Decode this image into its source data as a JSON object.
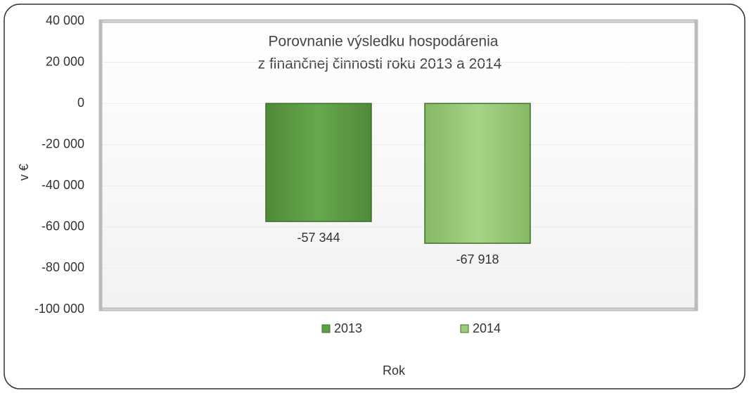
{
  "chart_data": {
    "type": "bar",
    "title": [
      "Porovnanie výsledku hospodárenia",
      "z finančnej činnosti roku 2013  a 2014"
    ],
    "xlabel": "Rok",
    "ylabel": "v €",
    "categories": [
      null
    ],
    "series": [
      {
        "name": "2013",
        "color": "#5e9e45",
        "values": [
          -57344
        ],
        "value_labels": [
          "-57 344"
        ]
      },
      {
        "name": "2014",
        "color": "#9dcb7a",
        "values": [
          -67918
        ],
        "value_labels": [
          "-67 918"
        ]
      }
    ],
    "ylim": [
      -100000,
      40000
    ],
    "yticks": [
      {
        "value": -100000,
        "label": "-100 000"
      },
      {
        "value": -80000,
        "label": "-80 000"
      },
      {
        "value": -60000,
        "label": "-60 000"
      },
      {
        "value": -40000,
        "label": "-40 000"
      },
      {
        "value": -20000,
        "label": "-20 000"
      },
      0,
      {
        "value": 20000,
        "label": "20 000"
      },
      {
        "value": 40000,
        "label": "40 000"
      }
    ],
    "grid": true,
    "legend": "bottom"
  }
}
